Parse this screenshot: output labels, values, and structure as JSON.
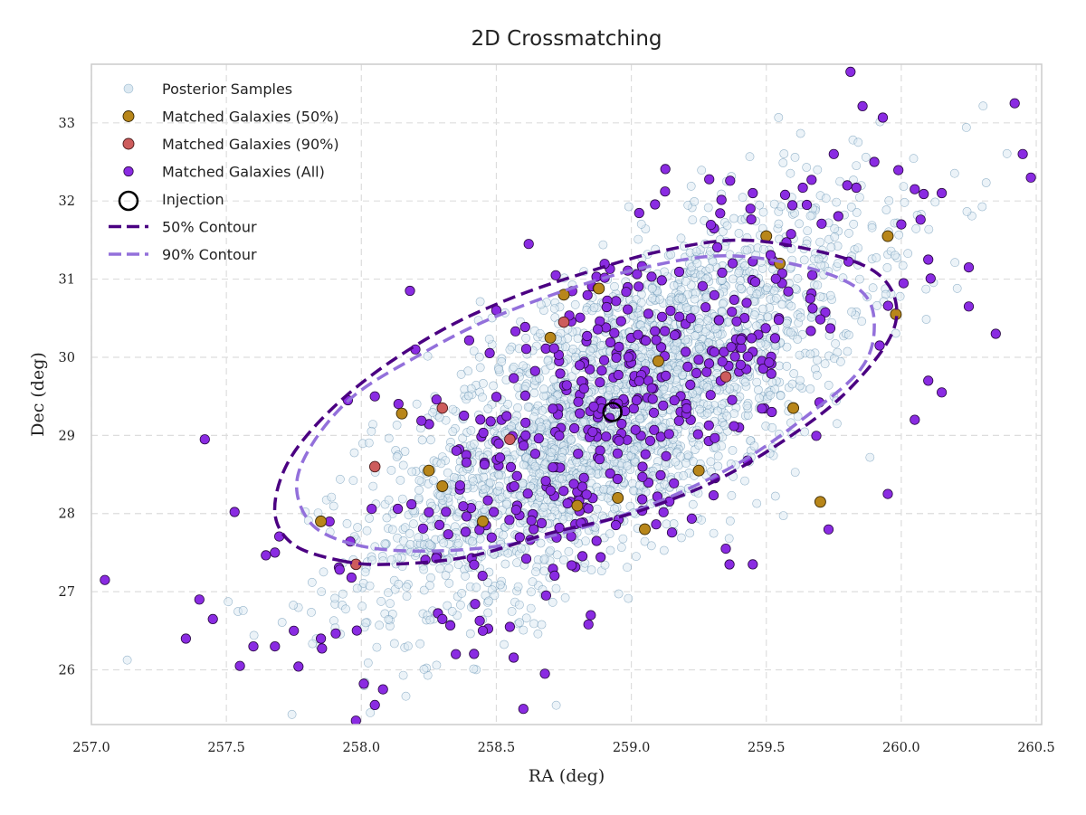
{
  "chart_data": {
    "type": "scatter",
    "title": "2D Crossmatching",
    "xlabel": "RA (deg)",
    "ylabel": "Dec (deg)",
    "xlim": [
      257.0,
      260.52
    ],
    "ylim": [
      25.3,
      33.75
    ],
    "xticks": [
      257.0,
      257.5,
      258.0,
      258.5,
      259.0,
      259.5,
      260.0,
      260.5
    ],
    "xtick_labels": [
      "257.0",
      "257.5",
      "258.0",
      "258.5",
      "259.0",
      "259.5",
      "260.0",
      "260.5"
    ],
    "yticks": [
      26,
      27,
      28,
      29,
      30,
      31,
      32,
      33
    ],
    "ytick_labels": [
      "26",
      "27",
      "28",
      "29",
      "30",
      "31",
      "32",
      "33"
    ],
    "grid": true,
    "legend_position": "top-left",
    "colors": {
      "posterior": "#dce9f2",
      "posterior_edge": "#4a7fa6",
      "matched50": "#b8861a",
      "matched90": "#cd5c5c",
      "matchedAll": "#8a2be2",
      "contour50": "#4b0082",
      "contour90": "#9370db"
    },
    "legend": [
      {
        "label": "Posterior Samples",
        "marker": "posterior"
      },
      {
        "label": "Matched Galaxies (50%)",
        "marker": "matched50"
      },
      {
        "label": "Matched Galaxies (90%)",
        "marker": "matched90"
      },
      {
        "label": "Matched Galaxies (All)",
        "marker": "matchedAll"
      },
      {
        "label": "Injection",
        "marker": "injection"
      },
      {
        "label": "50% Contour",
        "marker": "contour50"
      },
      {
        "label": "90% Contour",
        "marker": "contour90"
      }
    ],
    "injection": {
      "x": 258.93,
      "y": 29.3
    },
    "posterior": {
      "center": [
        258.95,
        29.35
      ],
      "sx": 0.45,
      "sy": 1.25,
      "rho": 0.72,
      "count": 2600
    },
    "contour50": [
      [
        257.92,
        27.4
      ],
      [
        258.1,
        27.35
      ],
      [
        258.4,
        27.45
      ],
      [
        258.7,
        27.75
      ],
      [
        259.0,
        28.0
      ],
      [
        259.3,
        28.4
      ],
      [
        259.55,
        28.9
      ],
      [
        259.78,
        29.5
      ],
      [
        259.95,
        30.2
      ],
      [
        259.98,
        30.7
      ],
      [
        259.9,
        31.1
      ],
      [
        259.7,
        31.35
      ],
      [
        259.4,
        31.5
      ],
      [
        259.1,
        31.35
      ],
      [
        258.8,
        31.05
      ],
      [
        258.55,
        30.75
      ],
      [
        258.3,
        30.35
      ],
      [
        258.05,
        29.8
      ],
      [
        257.85,
        29.2
      ],
      [
        257.72,
        28.6
      ],
      [
        257.68,
        28.0
      ],
      [
        257.75,
        27.6
      ],
      [
        257.92,
        27.4
      ]
    ],
    "contour90": [
      [
        257.98,
        27.6
      ],
      [
        258.2,
        27.52
      ],
      [
        258.5,
        27.58
      ],
      [
        258.8,
        27.8
      ],
      [
        259.1,
        28.15
      ],
      [
        259.4,
        28.65
      ],
      [
        259.65,
        29.25
      ],
      [
        259.85,
        29.85
      ],
      [
        259.9,
        30.4
      ],
      [
        259.85,
        30.85
      ],
      [
        259.65,
        31.15
      ],
      [
        259.35,
        31.3
      ],
      [
        259.05,
        31.15
      ],
      [
        258.75,
        30.85
      ],
      [
        258.45,
        30.45
      ],
      [
        258.2,
        30.0
      ],
      [
        257.97,
        29.5
      ],
      [
        257.82,
        28.9
      ],
      [
        257.76,
        28.35
      ],
      [
        257.82,
        27.85
      ],
      [
        257.98,
        27.6
      ]
    ],
    "matched50": [
      [
        258.15,
        29.28
      ],
      [
        257.85,
        27.9
      ],
      [
        258.75,
        30.8
      ],
      [
        258.88,
        30.88
      ],
      [
        259.5,
        31.55
      ],
      [
        259.55,
        31.2
      ],
      [
        259.95,
        31.55
      ],
      [
        259.98,
        30.55
      ],
      [
        258.25,
        28.55
      ],
      [
        258.95,
        28.2
      ],
      [
        259.05,
        27.8
      ],
      [
        259.25,
        28.55
      ],
      [
        259.7,
        28.15
      ],
      [
        258.8,
        28.1
      ],
      [
        259.6,
        29.35
      ],
      [
        258.3,
        28.35
      ],
      [
        258.45,
        27.9
      ],
      [
        258.7,
        30.25
      ],
      [
        259.1,
        29.95
      ]
    ],
    "matched90": [
      [
        258.3,
        29.35
      ],
      [
        258.75,
        30.45
      ],
      [
        257.98,
        27.35
      ],
      [
        258.05,
        28.6
      ],
      [
        259.35,
        29.75
      ],
      [
        258.55,
        28.95
      ]
    ],
    "matchedAll": {
      "core_count": 420,
      "outliers": [
        [
          257.05,
          27.15
        ],
        [
          257.35,
          26.4
        ],
        [
          257.42,
          28.95
        ],
        [
          257.4,
          26.9
        ],
        [
          257.6,
          26.3
        ],
        [
          257.55,
          26.05
        ],
        [
          257.68,
          27.5
        ],
        [
          257.68,
          26.3
        ],
        [
          258.35,
          26.2
        ],
        [
          258.08,
          25.75
        ],
        [
          258.45,
          26.5
        ],
        [
          258.55,
          26.55
        ],
        [
          258.3,
          26.65
        ],
        [
          258.6,
          25.5
        ],
        [
          258.68,
          25.95
        ],
        [
          258.85,
          26.7
        ],
        [
          259.35,
          27.55
        ],
        [
          259.45,
          27.35
        ],
        [
          260.05,
          29.2
        ],
        [
          260.15,
          29.55
        ],
        [
          260.35,
          30.3
        ],
        [
          260.45,
          32.6
        ],
        [
          260.48,
          32.3
        ],
        [
          260.42,
          33.25
        ],
        [
          260.15,
          32.1
        ],
        [
          260.25,
          31.15
        ],
        [
          260.25,
          30.65
        ],
        [
          260.0,
          31.7
        ],
        [
          259.75,
          32.6
        ],
        [
          259.9,
          32.5
        ],
        [
          258.18,
          30.85
        ],
        [
          258.2,
          30.1
        ],
        [
          258.5,
          30.6
        ],
        [
          258.62,
          31.45
        ],
        [
          258.72,
          31.05
        ],
        [
          259.95,
          28.25
        ],
        [
          260.1,
          29.7
        ],
        [
          259.92,
          30.15
        ],
        [
          257.95,
          29.45
        ],
        [
          258.05,
          29.5
        ],
        [
          257.85,
          26.4
        ],
        [
          257.45,
          26.65
        ],
        [
          258.05,
          25.55
        ],
        [
          257.98,
          25.35
        ],
        [
          257.75,
          26.5
        ],
        [
          259.45,
          32.1
        ],
        [
          259.65,
          31.95
        ],
        [
          259.8,
          32.2
        ],
        [
          260.05,
          32.15
        ],
        [
          260.1,
          31.25
        ]
      ]
    }
  }
}
